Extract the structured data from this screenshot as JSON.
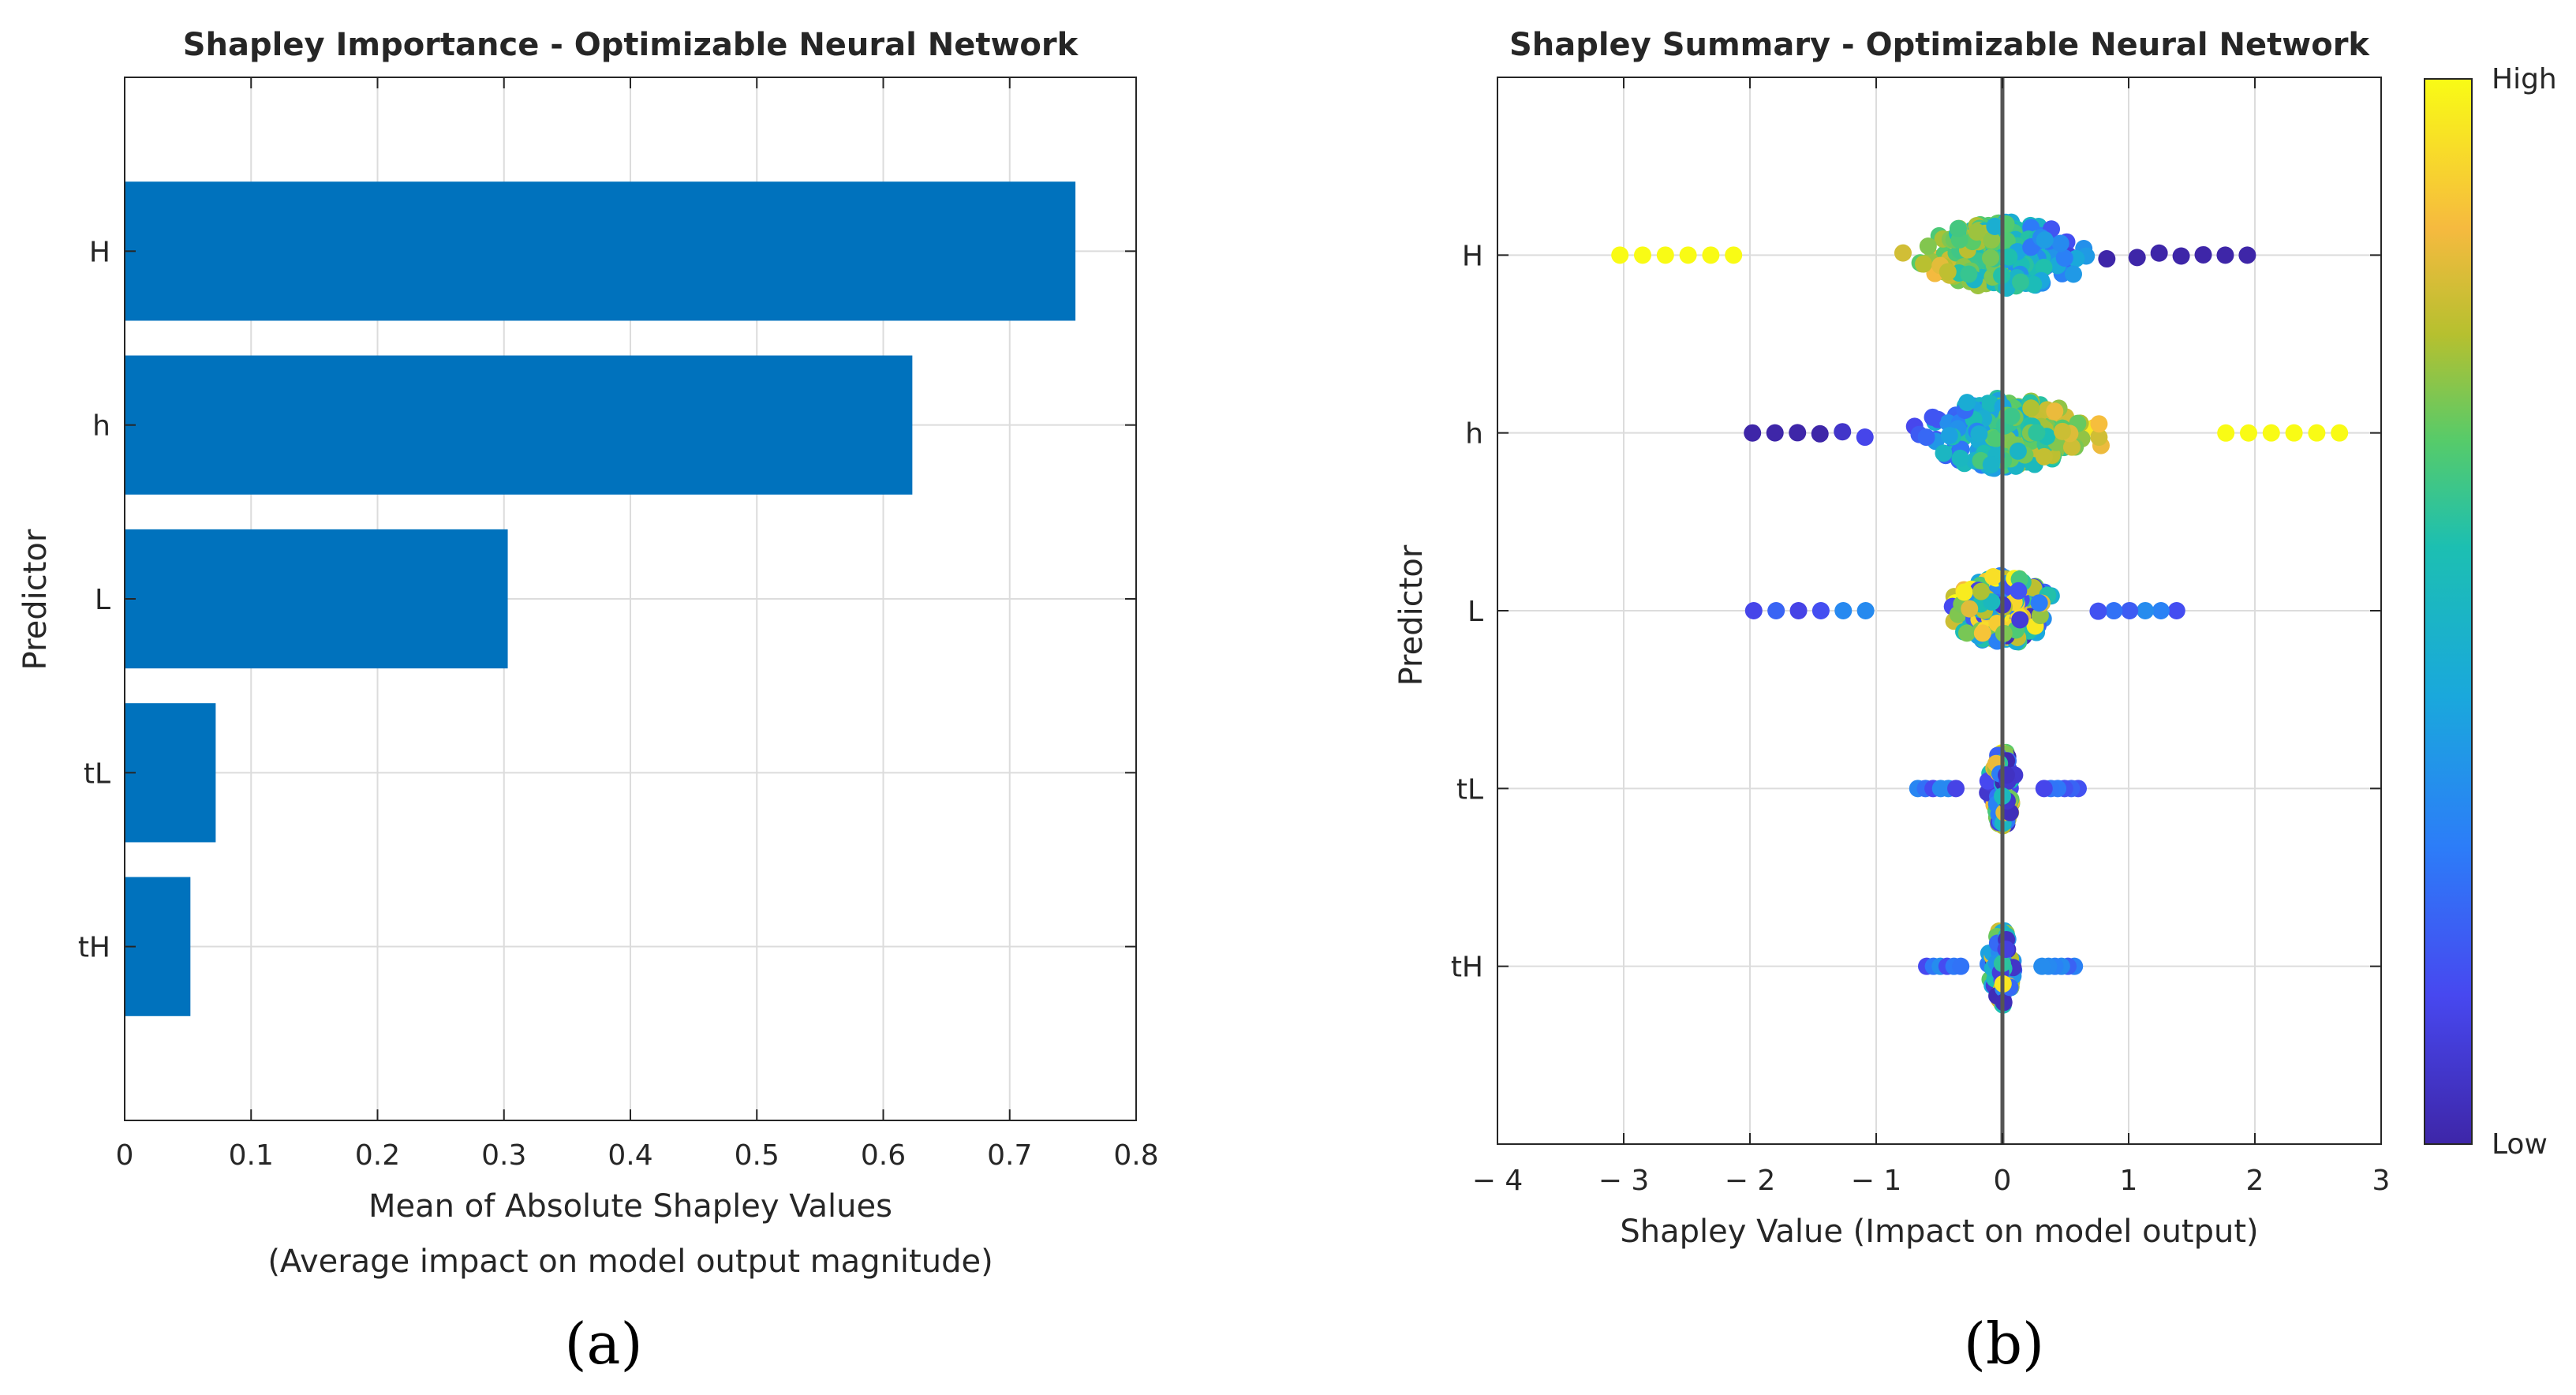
{
  "panel_labels": [
    "(a)",
    "(b)"
  ],
  "chart_data": [
    {
      "type": "bar",
      "orientation": "horizontal",
      "title": "Shapley Importance - Optimizable Neural Network",
      "xlabel": "Mean of Absolute Shapley Values",
      "xlabel2": "(Average impact on model output magnitude)",
      "ylabel": "Predictor",
      "categories": [
        "H",
        "h",
        "L",
        "tL",
        "tH"
      ],
      "values": [
        0.752,
        0.623,
        0.303,
        0.072,
        0.052
      ],
      "xlim": [
        0,
        0.8
      ],
      "xticks": [
        0,
        0.1,
        0.2,
        0.3,
        0.4,
        0.5,
        0.6,
        0.7,
        0.8
      ],
      "xtick_labels": [
        "0",
        "0.1",
        "0.2",
        "0.3",
        "0.4",
        "0.5",
        "0.6",
        "0.7",
        "0.8"
      ],
      "grid": true,
      "bar_color": "#0072BD"
    },
    {
      "type": "scatter",
      "subtype": "shapley-summary-swarm",
      "title": "Shapley Summary - Optimizable Neural Network",
      "xlabel": "Shapley Value (Impact on model output)",
      "ylabel": "Predictor",
      "categories": [
        "H",
        "h",
        "L",
        "tL",
        "tH"
      ],
      "xlim": [
        -4,
        3
      ],
      "xticks": [
        -4,
        -3,
        -2,
        -1,
        0,
        1,
        2,
        3
      ],
      "xtick_labels": [
        "− 4",
        "− 3",
        "− 2",
        "− 1",
        "0",
        "1",
        "2",
        "3"
      ],
      "grid": true,
      "colorbar": {
        "high_label": "High",
        "low_label": "Low",
        "colormap": "parula"
      },
      "series": [
        {
          "name": "H",
          "center": 0,
          "x_min": -3.03,
          "x_max": 1.94,
          "max_spread": 0.38,
          "n": 240,
          "value_trend": "high feature values give negative Shapley values"
        },
        {
          "name": "h",
          "center": 1,
          "x_min": -1.98,
          "x_max": 2.67,
          "max_spread": 0.4,
          "n": 240,
          "value_trend": "high feature values give positive Shapley values"
        },
        {
          "name": "L",
          "center": 2,
          "x_min": -1.97,
          "x_max": 1.38,
          "max_spread": 0.4,
          "n": 200,
          "value_trend": "mixed"
        },
        {
          "name": "tL",
          "center": 3,
          "x_min": -0.67,
          "x_max": 0.6,
          "max_spread": 0.4,
          "n": 130,
          "value_trend": "mixed"
        },
        {
          "name": "tH",
          "center": 4,
          "x_min": -0.6,
          "x_max": 0.57,
          "max_spread": 0.4,
          "n": 120,
          "value_trend": "mixed"
        }
      ]
    }
  ]
}
